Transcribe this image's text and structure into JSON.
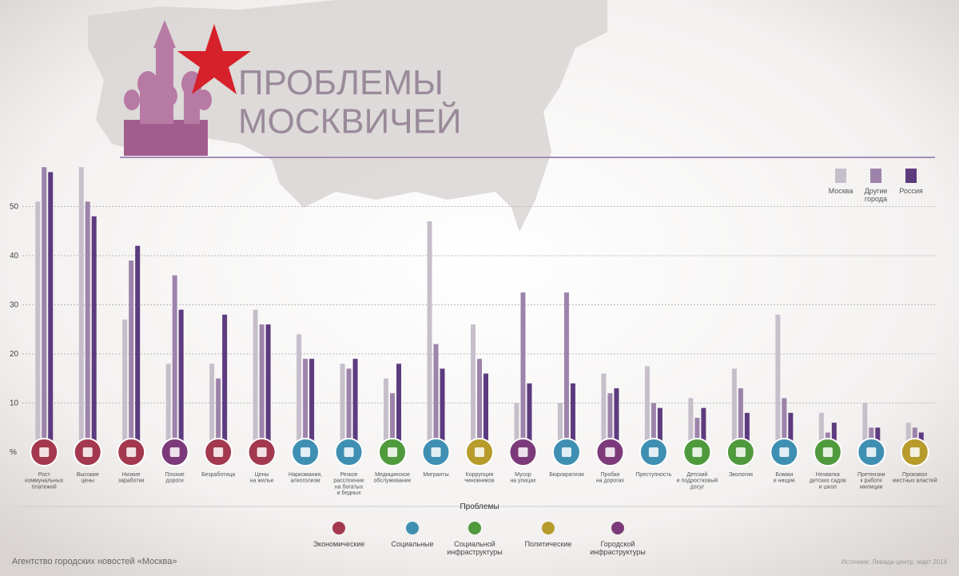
{
  "chart_data": {
    "type": "bar",
    "title": "ПРОБЛЕМЫ\nМОСКВИЧЕЙ",
    "categories": [
      "Рост\nкоммунальных\nплатежей",
      "Высокие\nцены",
      "Низкие\nзаработки",
      "Плохие\nдороги",
      "Безработица",
      "Цены\nна жилье",
      "Наркомания,\nалкоголизм",
      "Резкое\nрасслоение\nна богатых\nи бедных",
      "Медицинское\nобслуживание",
      "Мигранты",
      "Коррупция\nчиновников",
      "Мусор\nна улицах",
      "Бюрократизм",
      "Пробки\nна дорогах",
      "Преступность",
      "Детский\nи подростковый\nдосуг",
      "Экология",
      "Бомжи\nи нищие",
      "Нехватка\nдетских садов\nи школ",
      "Претензии\nк работе\nмилиции",
      "Произвол\nместных властей"
    ],
    "category_colors": [
      "#a3384e",
      "#a3384e",
      "#a3384e",
      "#7d3a7a",
      "#a3384e",
      "#a3384e",
      "#3f8fb3",
      "#3f8fb3",
      "#4f9a3c",
      "#3f8fb3",
      "#b79b2b",
      "#7d3a7a",
      "#3f8fb3",
      "#7d3a7a",
      "#3f8fb3",
      "#4f9a3c",
      "#4f9a3c",
      "#3f8fb3",
      "#4f9a3c",
      "#3f8fb3",
      "#b79b2b"
    ],
    "series": [
      {
        "name": "Москва",
        "color": "#c6bfcb",
        "values": [
          51,
          58,
          27,
          18,
          18,
          29,
          24,
          18,
          15,
          47,
          26,
          10,
          10,
          16,
          17.5,
          11,
          17,
          28,
          8,
          10,
          6
        ]
      },
      {
        "name": "Другие\nгорода",
        "color": "#9d83ab",
        "values": [
          58,
          51,
          39,
          36,
          15,
          26,
          19,
          17,
          12,
          22,
          19,
          32.5,
          32.5,
          12,
          10,
          7,
          13,
          11,
          4,
          5,
          5
        ]
      },
      {
        "name": "Россия",
        "color": "#5d3b7f",
        "values": [
          57,
          48,
          42,
          29,
          28,
          26,
          19,
          19,
          18,
          17,
          16,
          14,
          14,
          13,
          9,
          9,
          8,
          8,
          6,
          5,
          4
        ]
      }
    ],
    "ylim": [
      0,
      60
    ],
    "yticks": [
      {
        "value": 0,
        "label": "%"
      },
      10,
      20,
      30,
      40,
      50
    ],
    "grid": true,
    "groups_title": "Проблемы",
    "groups": [
      {
        "name": "Экономические",
        "color": "#a3384e"
      },
      {
        "name": "Социальные",
        "color": "#3f8fb3"
      },
      {
        "name": "Социальной\nинфраструктуры",
        "color": "#4f9a3c"
      },
      {
        "name": "Политические",
        "color": "#b79b2b"
      },
      {
        "name": "Городской\nинфраструктуры",
        "color": "#7d3a7a"
      }
    ],
    "footer_left": "Агентство городских новостей «Москва»",
    "footer_right": "Источник: Левада-центр, март 2014"
  }
}
